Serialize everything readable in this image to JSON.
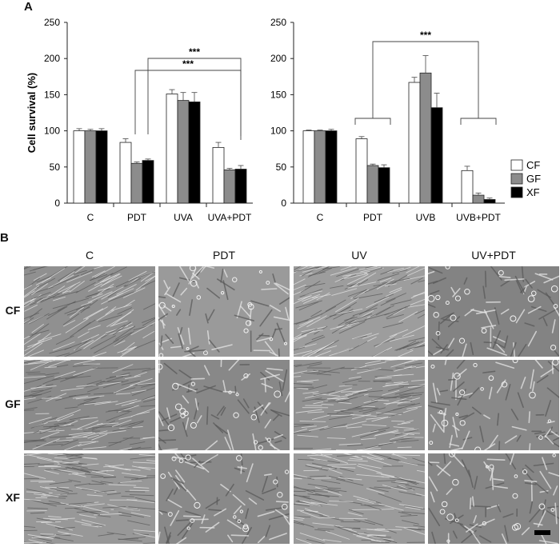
{
  "panel_a_label": "A",
  "panel_b_label": "B",
  "legend": [
    {
      "label": "CF",
      "color": "#ffffff"
    },
    {
      "label": "GF",
      "color": "#8c8c8c"
    },
    {
      "label": "XF",
      "color": "#000000"
    }
  ],
  "chart_data": [
    {
      "type": "bar",
      "ylabel": "Cell survival (%)",
      "ylim": [
        0,
        250
      ],
      "yticks": [
        0,
        50,
        100,
        150,
        200,
        250
      ],
      "categories": [
        "C",
        "PDT",
        "UVA",
        "UVA+PDT"
      ],
      "series": [
        {
          "name": "CF",
          "values": [
            100,
            84,
            151,
            77
          ],
          "errors": [
            3,
            5,
            6,
            7
          ]
        },
        {
          "name": "GF",
          "values": [
            100,
            55,
            142,
            46
          ],
          "errors": [
            2,
            2,
            11,
            2
          ]
        },
        {
          "name": "XF",
          "values": [
            100,
            59,
            140,
            47
          ],
          "errors": [
            3,
            2,
            13,
            5
          ]
        }
      ],
      "annotations": [
        {
          "text": "***",
          "from_category": "PDT",
          "to_category": "UVA+PDT",
          "level": 1
        },
        {
          "text": "***",
          "from_category": "PDT",
          "to_category": "UVA+PDT",
          "level": 2
        }
      ]
    },
    {
      "type": "bar",
      "ylabel": "",
      "ylim": [
        0,
        250
      ],
      "yticks": [
        0,
        50,
        100,
        150,
        200,
        250
      ],
      "categories": [
        "C",
        "PDT",
        "UVB",
        "UVB+PDT"
      ],
      "series": [
        {
          "name": "CF",
          "values": [
            100,
            89,
            167,
            45
          ],
          "errors": [
            1,
            3,
            7,
            6
          ]
        },
        {
          "name": "GF",
          "values": [
            100,
            52,
            180,
            11
          ],
          "errors": [
            1,
            2,
            24,
            3
          ]
        },
        {
          "name": "XF",
          "values": [
            100,
            49,
            132,
            5
          ],
          "errors": [
            2,
            4,
            20,
            2
          ]
        }
      ],
      "annotations": [
        {
          "text": "***",
          "from_category": "PDT",
          "to_category": "UVB+PDT",
          "level": 1
        }
      ]
    }
  ],
  "micrographs": {
    "columns": [
      "C",
      "PDT",
      "UV",
      "UV+PDT"
    ],
    "rows": [
      "CF",
      "GF",
      "XF"
    ]
  }
}
